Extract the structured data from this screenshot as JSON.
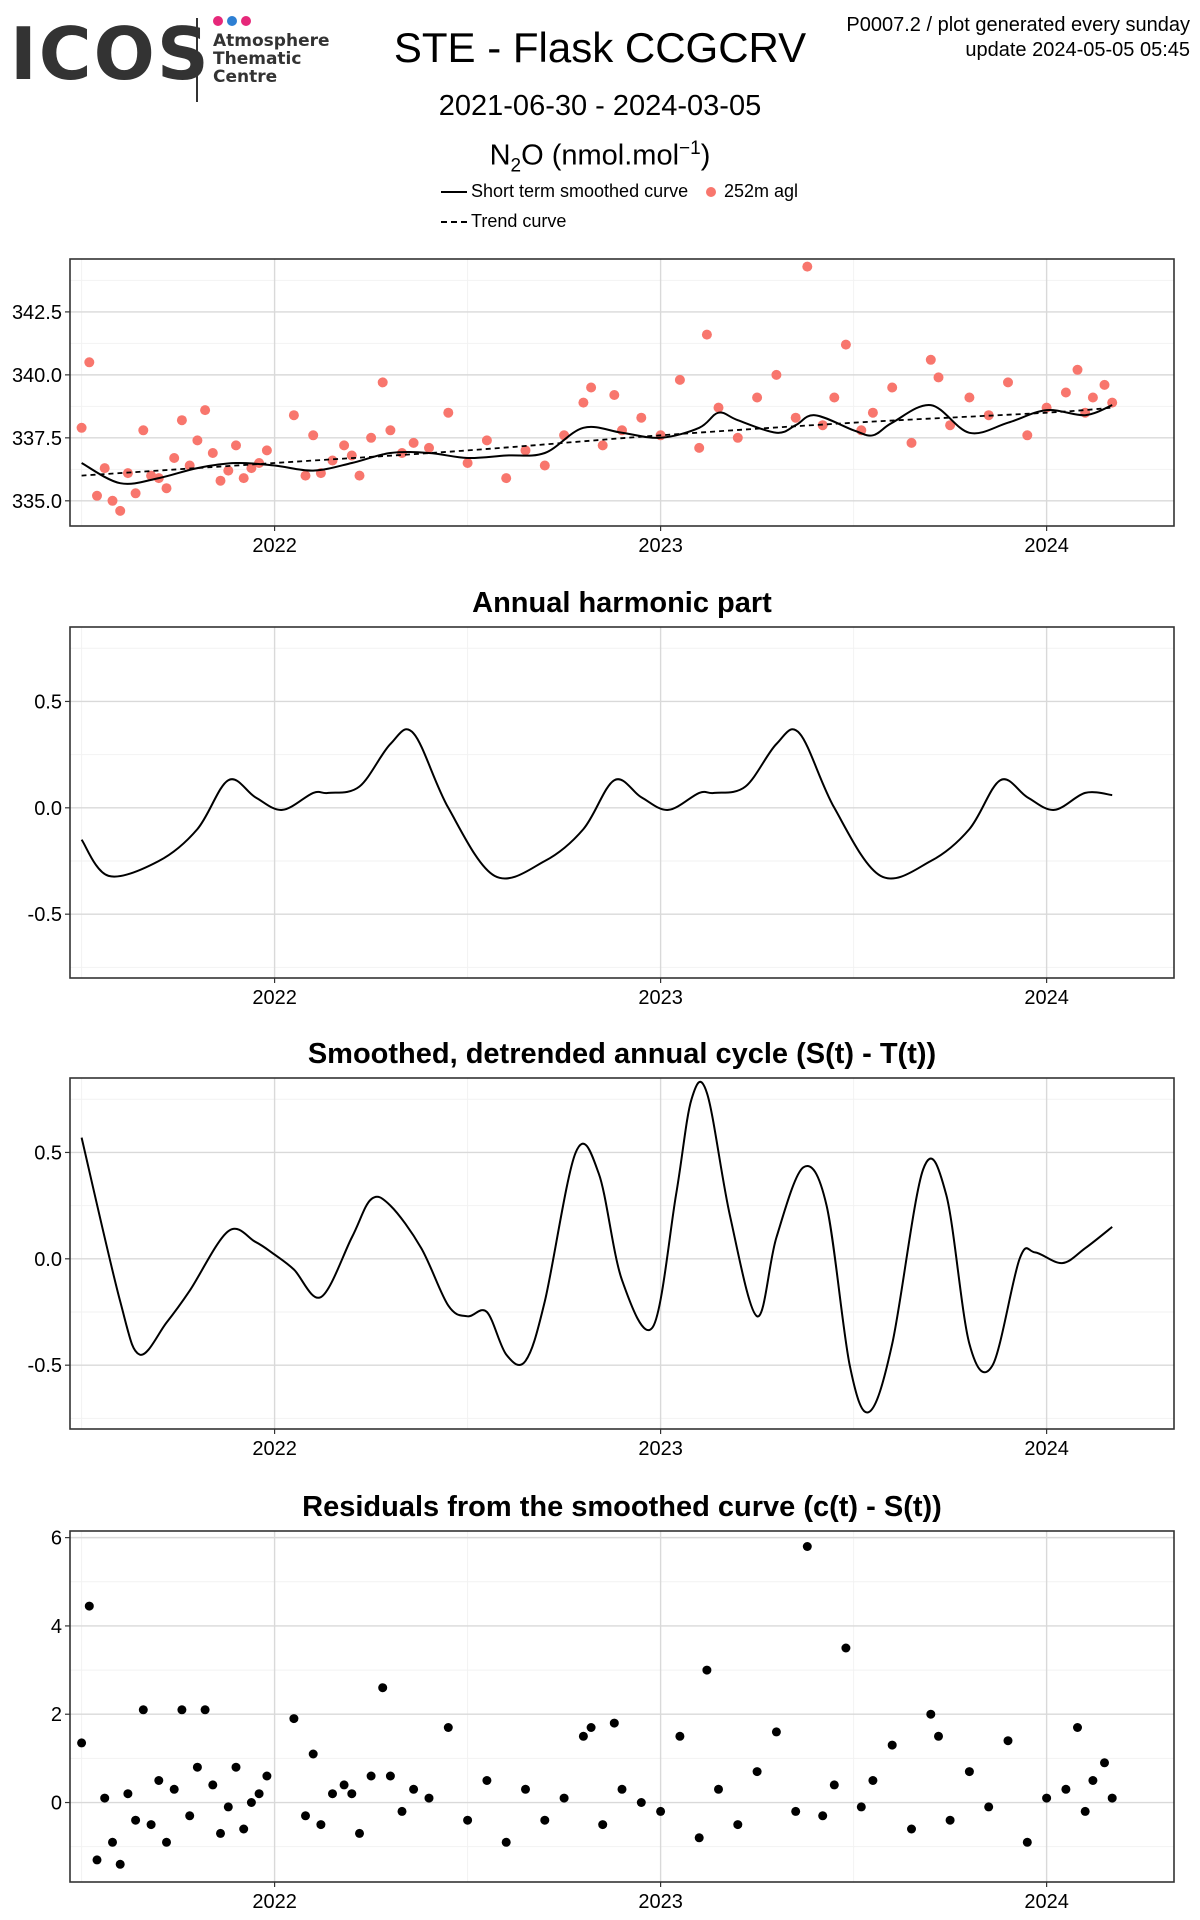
{
  "header": {
    "logo_text": "ICOS",
    "logo_sub": [
      "Atmosphere",
      "Thematic",
      "Centre"
    ],
    "title": "STE - Flask CCGCRV",
    "date_range": "2021-06-30 - 2024-03-05",
    "species_main": "N",
    "species_sub": "2",
    "species_rest": "O (nmol.mol",
    "species_sup": "−1",
    "species_close": ")",
    "info_line1": "P0007.2 / plot generated every sunday",
    "info_line2": "update  2024-05-05 05:45"
  },
  "legend": {
    "smoothed": "Short term smoothed curve",
    "points": "252m agl",
    "trend": "Trend curve"
  },
  "colors": {
    "points": "#f8766d",
    "line": "#000000",
    "grid": "#ebebeb",
    "logo_dots": [
      "#e6287a",
      "#2d7fd3",
      "#e6287a"
    ]
  },
  "chart_data": [
    {
      "type": "scatter",
      "title": "",
      "xlim": [
        2021.47,
        2024.33
      ],
      "ylim": [
        334.0,
        344.6
      ],
      "x_ticks": [
        2022,
        2023,
        2024
      ],
      "x_tick_labels": [
        "2022",
        "2023",
        "2024"
      ],
      "y_ticks": [
        335.0,
        337.5,
        340.0,
        342.5
      ],
      "y_tick_labels": [
        "335.0",
        "337.5",
        "340.0",
        "342.5"
      ],
      "grid": true,
      "series": [
        {
          "name": "252m agl",
          "kind": "points",
          "x": [
            2021.5,
            2021.52,
            2021.54,
            2021.56,
            2021.58,
            2021.6,
            2021.62,
            2021.64,
            2021.66,
            2021.68,
            2021.7,
            2021.72,
            2021.74,
            2021.76,
            2021.78,
            2021.8,
            2021.82,
            2021.84,
            2021.86,
            2021.88,
            2021.9,
            2021.92,
            2021.94,
            2021.96,
            2021.98,
            2022.05,
            2022.08,
            2022.1,
            2022.12,
            2022.15,
            2022.18,
            2022.2,
            2022.22,
            2022.25,
            2022.28,
            2022.3,
            2022.33,
            2022.36,
            2022.4,
            2022.45,
            2022.5,
            2022.55,
            2022.6,
            2022.65,
            2022.7,
            2022.75,
            2022.8,
            2022.82,
            2022.85,
            2022.88,
            2022.9,
            2022.95,
            2023.0,
            2023.05,
            2023.1,
            2023.12,
            2023.15,
            2023.2,
            2023.25,
            2023.3,
            2023.35,
            2023.38,
            2023.42,
            2023.45,
            2023.48,
            2023.52,
            2023.55,
            2023.6,
            2023.65,
            2023.7,
            2023.72,
            2023.75,
            2023.8,
            2023.85,
            2023.9,
            2023.95,
            2024.0,
            2024.05,
            2024.08,
            2024.1,
            2024.12,
            2024.15,
            2024.17
          ],
          "y": [
            337.9,
            340.5,
            335.2,
            336.3,
            335.0,
            334.6,
            336.1,
            335.3,
            337.8,
            336.0,
            335.9,
            335.5,
            336.7,
            338.2,
            336.4,
            337.4,
            338.6,
            336.9,
            335.8,
            336.2,
            337.2,
            335.9,
            336.3,
            336.5,
            337.0,
            338.4,
            336.0,
            337.6,
            336.1,
            336.6,
            337.2,
            336.8,
            336.0,
            337.5,
            339.7,
            337.8,
            336.9,
            337.3,
            337.1,
            338.5,
            336.5,
            337.4,
            335.9,
            337.0,
            336.4,
            337.6,
            338.9,
            339.5,
            337.2,
            339.2,
            337.8,
            338.3,
            337.6,
            339.8,
            337.1,
            341.6,
            338.7,
            337.5,
            339.1,
            340.0,
            338.3,
            344.3,
            338.0,
            339.1,
            341.2,
            337.8,
            338.5,
            339.5,
            337.3,
            340.6,
            339.9,
            338.0,
            339.1,
            338.4,
            339.7,
            337.6,
            338.7,
            339.3,
            340.2,
            338.5,
            339.1,
            339.6,
            338.9
          ]
        },
        {
          "name": "Short term smoothed curve",
          "kind": "line",
          "x": [
            2021.5,
            2021.6,
            2021.7,
            2021.8,
            2021.9,
            2022.0,
            2022.1,
            2022.2,
            2022.3,
            2022.4,
            2022.5,
            2022.6,
            2022.7,
            2022.8,
            2022.9,
            2023.0,
            2023.1,
            2023.15,
            2023.2,
            2023.3,
            2023.35,
            2023.4,
            2023.5,
            2023.55,
            2023.6,
            2023.7,
            2023.8,
            2023.9,
            2024.0,
            2024.1,
            2024.17
          ],
          "y": [
            336.5,
            335.7,
            335.9,
            336.3,
            336.5,
            336.4,
            336.2,
            336.5,
            336.9,
            336.9,
            336.7,
            336.8,
            336.9,
            337.9,
            337.7,
            337.5,
            337.9,
            338.5,
            338.2,
            337.7,
            338.0,
            338.4,
            337.8,
            337.6,
            338.1,
            338.8,
            337.7,
            338.1,
            338.6,
            338.4,
            338.8
          ]
        },
        {
          "name": "Trend curve",
          "kind": "dashed",
          "x": [
            2021.5,
            2022.0,
            2022.5,
            2023.0,
            2023.5,
            2024.0,
            2024.17
          ],
          "y": [
            336.0,
            336.5,
            337.0,
            337.6,
            338.1,
            338.5,
            338.7
          ]
        }
      ]
    },
    {
      "type": "line",
      "title": "Annual harmonic part",
      "xlim": [
        2021.47,
        2024.33
      ],
      "ylim": [
        -0.8,
        0.85
      ],
      "x_ticks": [
        2022,
        2023,
        2024
      ],
      "x_tick_labels": [
        "2022",
        "2023",
        "2024"
      ],
      "y_ticks": [
        -0.5,
        0.0,
        0.5
      ],
      "y_tick_labels": [
        "-0.5",
        "0.0",
        "0.5"
      ],
      "grid": true,
      "series": [
        {
          "name": "",
          "kind": "line",
          "x": [
            2021.5,
            2021.57,
            2021.7,
            2021.8,
            2021.88,
            2021.95,
            2022.02,
            2022.1,
            2022.14,
            2022.22,
            2022.3,
            2022.36,
            2022.45,
            2022.57,
            2022.7,
            2022.8,
            2022.88,
            2022.95,
            2023.02,
            2023.1,
            2023.14,
            2023.22,
            2023.3,
            2023.36,
            2023.45,
            2023.57,
            2023.7,
            2023.8,
            2023.88,
            2023.95,
            2024.02,
            2024.1,
            2024.17
          ],
          "y": [
            -0.15,
            -0.32,
            -0.25,
            -0.1,
            0.13,
            0.05,
            -0.01,
            0.07,
            0.07,
            0.1,
            0.3,
            0.35,
            0.0,
            -0.32,
            -0.25,
            -0.1,
            0.13,
            0.05,
            -0.01,
            0.07,
            0.07,
            0.1,
            0.3,
            0.35,
            0.0,
            -0.32,
            -0.25,
            -0.1,
            0.13,
            0.05,
            -0.01,
            0.07,
            0.06
          ]
        }
      ]
    },
    {
      "type": "line",
      "title": "Smoothed, detrended annual cycle (S(t) - T(t))",
      "xlim": [
        2021.47,
        2024.33
      ],
      "ylim": [
        -0.8,
        0.85
      ],
      "x_ticks": [
        2022,
        2023,
        2024
      ],
      "x_tick_labels": [
        "2022",
        "2023",
        "2024"
      ],
      "y_ticks": [
        -0.5,
        0.0,
        0.5
      ],
      "y_tick_labels": [
        "-0.5",
        "0.0",
        "0.5"
      ],
      "grid": true,
      "series": [
        {
          "name": "",
          "kind": "line",
          "x": [
            2021.5,
            2021.6,
            2021.65,
            2021.72,
            2021.78,
            2021.88,
            2021.95,
            2022.0,
            2022.05,
            2022.12,
            2022.2,
            2022.25,
            2022.3,
            2022.38,
            2022.45,
            2022.5,
            2022.55,
            2022.6,
            2022.65,
            2022.7,
            2022.78,
            2022.84,
            2022.9,
            2022.98,
            2023.04,
            2023.08,
            2023.12,
            2023.18,
            2023.25,
            2023.3,
            2023.37,
            2023.43,
            2023.49,
            2023.54,
            2023.6,
            2023.68,
            2023.74,
            2023.8,
            2023.86,
            2023.93,
            2023.97,
            2024.04,
            2024.1,
            2024.17
          ],
          "y": [
            0.57,
            -0.2,
            -0.45,
            -0.3,
            -0.15,
            0.13,
            0.08,
            0.02,
            -0.05,
            -0.18,
            0.1,
            0.28,
            0.25,
            0.05,
            -0.22,
            -0.27,
            -0.25,
            -0.45,
            -0.48,
            -0.2,
            0.5,
            0.4,
            -0.1,
            -0.32,
            0.3,
            0.75,
            0.78,
            0.2,
            -0.27,
            0.1,
            0.43,
            0.25,
            -0.5,
            -0.72,
            -0.4,
            0.42,
            0.3,
            -0.4,
            -0.5,
            0.0,
            0.03,
            -0.02,
            0.05,
            0.15
          ]
        }
      ]
    },
    {
      "type": "scatter",
      "title": "Residuals from the smoothed curve (c(t) - S(t))",
      "xlim": [
        2021.47,
        2024.33
      ],
      "ylim": [
        -1.8,
        6.15
      ],
      "x_ticks": [
        2022,
        2023,
        2024
      ],
      "x_tick_labels": [
        "2022",
        "2023",
        "2024"
      ],
      "y_ticks": [
        0,
        2,
        4,
        6
      ],
      "y_tick_labels": [
        "0",
        "2",
        "4",
        "6"
      ],
      "grid": true,
      "series": [
        {
          "name": "",
          "kind": "points",
          "x": [
            2021.5,
            2021.52,
            2021.54,
            2021.56,
            2021.58,
            2021.6,
            2021.62,
            2021.64,
            2021.66,
            2021.68,
            2021.7,
            2021.72,
            2021.74,
            2021.76,
            2021.78,
            2021.8,
            2021.82,
            2021.84,
            2021.86,
            2021.88,
            2021.9,
            2021.92,
            2021.94,
            2021.96,
            2021.98,
            2022.05,
            2022.08,
            2022.1,
            2022.12,
            2022.15,
            2022.18,
            2022.2,
            2022.22,
            2022.25,
            2022.28,
            2022.3,
            2022.33,
            2022.36,
            2022.4,
            2022.45,
            2022.5,
            2022.55,
            2022.6,
            2022.65,
            2022.7,
            2022.75,
            2022.8,
            2022.82,
            2022.85,
            2022.88,
            2022.9,
            2022.95,
            2023.0,
            2023.05,
            2023.1,
            2023.12,
            2023.15,
            2023.2,
            2023.25,
            2023.3,
            2023.35,
            2023.38,
            2023.42,
            2023.45,
            2023.48,
            2023.52,
            2023.55,
            2023.6,
            2023.65,
            2023.7,
            2023.72,
            2023.75,
            2023.8,
            2023.85,
            2023.9,
            2023.95,
            2024.0,
            2024.05,
            2024.08,
            2024.1,
            2024.12,
            2024.15,
            2024.17
          ],
          "y": [
            1.35,
            4.45,
            -1.3,
            0.1,
            -0.9,
            -1.4,
            0.2,
            -0.4,
            2.1,
            -0.5,
            0.5,
            -0.9,
            0.3,
            2.1,
            -0.3,
            0.8,
            2.1,
            0.4,
            -0.7,
            -0.1,
            0.8,
            -0.6,
            0.0,
            0.2,
            0.6,
            1.9,
            -0.3,
            1.1,
            -0.5,
            0.2,
            0.4,
            0.2,
            -0.7,
            0.6,
            2.6,
            0.6,
            -0.2,
            0.3,
            0.1,
            1.7,
            -0.4,
            0.5,
            -0.9,
            0.3,
            -0.4,
            0.1,
            1.5,
            1.7,
            -0.5,
            1.8,
            0.3,
            0.0,
            -0.2,
            1.5,
            -0.8,
            3.0,
            0.3,
            -0.5,
            0.7,
            1.6,
            -0.2,
            5.8,
            -0.3,
            0.4,
            3.5,
            -0.1,
            0.5,
            1.3,
            -0.6,
            2.0,
            1.5,
            -0.4,
            0.7,
            -0.1,
            1.4,
            -0.9,
            0.1,
            0.3,
            1.7,
            -0.2,
            0.5,
            0.9,
            0.1
          ]
        }
      ]
    }
  ]
}
